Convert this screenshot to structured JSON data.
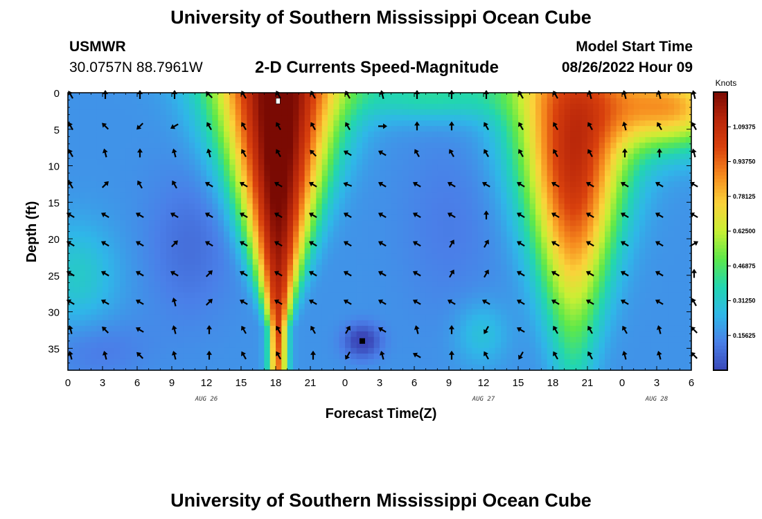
{
  "header": {
    "title": "University of Southern Mississippi Ocean Cube",
    "station_name": "USMWR",
    "station_coords": "30.0757N  88.7961W",
    "subtitle": "2-D Currents Speed-Magnitude",
    "model_start_label": "Model Start Time",
    "model_start_value": "08/26/2022 Hour 09"
  },
  "footer": {
    "title": "University of Southern Mississippi Ocean Cube"
  },
  "chart_data": {
    "type": "heatmap",
    "title": "2-D Currents Speed-Magnitude",
    "xlabel": "Forecast Time(Z)",
    "ylabel": "Depth (ft)",
    "x_range_hours": [
      0,
      54
    ],
    "x_ticks": [
      {
        "hour": 0,
        "label": "0"
      },
      {
        "hour": 3,
        "label": "3"
      },
      {
        "hour": 6,
        "label": "6"
      },
      {
        "hour": 9,
        "label": "9"
      },
      {
        "hour": 12,
        "label": "12"
      },
      {
        "hour": 15,
        "label": "15"
      },
      {
        "hour": 18,
        "label": "18"
      },
      {
        "hour": 21,
        "label": "21"
      },
      {
        "hour": 24,
        "label": "0"
      },
      {
        "hour": 27,
        "label": "3"
      },
      {
        "hour": 30,
        "label": "6"
      },
      {
        "hour": 33,
        "label": "9"
      },
      {
        "hour": 36,
        "label": "12"
      },
      {
        "hour": 39,
        "label": "15"
      },
      {
        "hour": 42,
        "label": "18"
      },
      {
        "hour": 45,
        "label": "21"
      },
      {
        "hour": 48,
        "label": "0"
      },
      {
        "hour": 51,
        "label": "3"
      },
      {
        "hour": 54,
        "label": "6"
      }
    ],
    "date_labels": [
      {
        "hour": 12,
        "label": "AUG 26"
      },
      {
        "hour": 36,
        "label": "AUG 27"
      },
      {
        "hour": 51,
        "label": "AUG 28"
      }
    ],
    "y_range_ft": [
      0,
      38
    ],
    "y_inverted": true,
    "y_ticks": [
      0,
      5,
      10,
      15,
      20,
      25,
      30,
      35
    ],
    "colorbar": {
      "unit_label": "Knots",
      "range": [
        0,
        1.25
      ],
      "labels": [
        "1.09375",
        "0.93750",
        "0.78125",
        "0.62500",
        "0.46875",
        "0.31250",
        "0.15625"
      ],
      "colors": [
        "#3a47b8",
        "#4a7fe8",
        "#2fb7e8",
        "#22d6b0",
        "#5de84a",
        "#c8ef34",
        "#fbd23a",
        "#f68a1e",
        "#d9410d",
        "#b8260a",
        "#7a0a03"
      ]
    },
    "speed_model": {
      "base_knots": 0.17,
      "units": "hour, depth_ft, knots",
      "features": [
        {
          "name": "core-day1-afternoon",
          "hour": 18.2,
          "depth": 4,
          "sigma_hour": 3.8,
          "sigma_depth": 36,
          "peak": 1.15,
          "taper_depth": 38
        },
        {
          "name": "core-day2-evening",
          "hour": 43.8,
          "depth": 8,
          "sigma_hour": 3.8,
          "sigma_depth": 17,
          "peak": 0.93,
          "taper_depth": 60
        },
        {
          "name": "surface-day3-band",
          "hour": 52.5,
          "depth": 2,
          "sigma_hour": 3.6,
          "sigma_depth": 4,
          "peak": 0.62,
          "taper_depth": 0
        },
        {
          "name": "surface-day2-noon",
          "hour": 31.5,
          "depth": 0.5,
          "sigma_hour": 4.5,
          "sigma_depth": 2.4,
          "peak": 0.22,
          "taper_depth": 0
        },
        {
          "name": "left-middle-green",
          "hour": 0.8,
          "depth": 25,
          "sigma_hour": 2.4,
          "sigma_depth": 5,
          "peak": 0.15,
          "taper_depth": 0
        },
        {
          "name": "mid-day1-low",
          "hour": 10.5,
          "depth": 21,
          "sigma_hour": 2.6,
          "sigma_depth": 7,
          "peak": -0.08,
          "taper_depth": 0
        },
        {
          "name": "bottom-left-low",
          "hour": 2.5,
          "depth": 35,
          "sigma_hour": 3,
          "sigma_depth": 3,
          "peak": -0.06,
          "taper_depth": 0
        },
        {
          "name": "bottom-calm-spot",
          "hour": 25.5,
          "depth": 34,
          "sigma_hour": 1.1,
          "sigma_depth": 1.6,
          "peak": -0.2,
          "taper_depth": 0
        },
        {
          "name": "day2-mid-low",
          "hour": 33,
          "depth": 18,
          "sigma_hour": 3,
          "sigma_depth": 9,
          "peak": -0.05,
          "taper_depth": 0
        },
        {
          "name": "green-patch-day2",
          "hour": 35.8,
          "depth": 33,
          "sigma_hour": 1.6,
          "sigma_depth": 3,
          "peak": 0.12,
          "taper_depth": 0
        }
      ]
    },
    "vector_grid": {
      "hours": [
        0,
        3,
        6,
        9,
        12,
        15,
        18,
        21,
        24,
        27,
        30,
        33,
        36,
        39,
        42,
        45,
        48,
        51,
        54
      ],
      "depths_ft": [
        0,
        4.3,
        8,
        12.3,
        16.5,
        20.4,
        24.5,
        28.4,
        32.2,
        35.7
      ],
      "angles_deg": [
        [
          330,
          0,
          0,
          0,
          315,
          330,
          330,
          330,
          330,
          345,
          0,
          0,
          0,
          330,
          330,
          345,
          345,
          345,
          345
        ],
        [
          330,
          315,
          225,
          240,
          330,
          330,
          330,
          330,
          330,
          90,
          0,
          0,
          330,
          330,
          330,
          330,
          345,
          330,
          330
        ],
        [
          330,
          345,
          0,
          345,
          345,
          330,
          330,
          315,
          300,
          300,
          330,
          330,
          330,
          330,
          330,
          330,
          0,
          0,
          345
        ],
        [
          330,
          45,
          330,
          330,
          300,
          300,
          300,
          300,
          290,
          300,
          300,
          300,
          300,
          300,
          300,
          300,
          300,
          300,
          300
        ],
        [
          300,
          300,
          300,
          300,
          300,
          300,
          300,
          300,
          300,
          300,
          300,
          300,
          0,
          300,
          300,
          300,
          300,
          300,
          300
        ],
        [
          300,
          300,
          300,
          45,
          300,
          300,
          300,
          300,
          300,
          300,
          300,
          30,
          30,
          300,
          300,
          300,
          300,
          300,
          60
        ],
        [
          300,
          300,
          300,
          300,
          45,
          300,
          300,
          300,
          300,
          300,
          300,
          30,
          30,
          300,
          300,
          300,
          300,
          300,
          0
        ],
        [
          300,
          300,
          300,
          345,
          45,
          300,
          300,
          300,
          300,
          300,
          300,
          300,
          300,
          300,
          300,
          300,
          300,
          300,
          330
        ],
        [
          345,
          315,
          300,
          345,
          0,
          330,
          330,
          330,
          30,
          300,
          345,
          0,
          210,
          300,
          330,
          330,
          330,
          345,
          315
        ],
        [
          345,
          345,
          315,
          345,
          0,
          330,
          330,
          0,
          210,
          345,
          300,
          0,
          330,
          210,
          330,
          330,
          345,
          345,
          315
        ]
      ]
    }
  }
}
